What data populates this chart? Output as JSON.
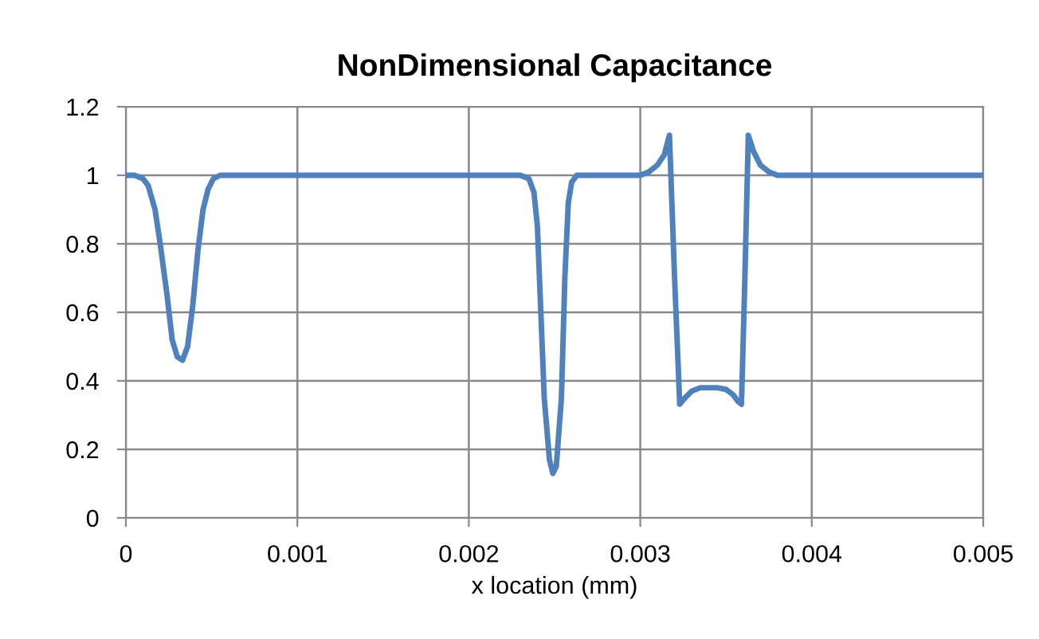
{
  "chart_data": {
    "type": "line",
    "title": "NonDimensional Capacitance",
    "xlabel": "x location (mm)",
    "series": [
      {
        "color": "#4f81bd",
        "x": [
          0,
          5e-05,
          0.0001,
          0.00013,
          0.00017,
          0.0002,
          0.00024,
          0.00027,
          0.0003,
          0.00033,
          0.00036,
          0.00039,
          0.00042,
          0.00045,
          0.00048,
          0.00051,
          0.00055,
          0.0006,
          0.0012,
          0.0018,
          0.0023,
          0.00235,
          0.00238,
          0.0024,
          0.00242,
          0.00244,
          0.00247,
          0.00249,
          0.00251,
          0.00254,
          0.00256,
          0.00258,
          0.0026,
          0.00263,
          0.00268,
          0.0028,
          0.0029,
          0.003,
          0.00305,
          0.0031,
          0.00314,
          0.00317,
          0.0032,
          0.00323,
          0.00326,
          0.0033,
          0.00335,
          0.0034,
          0.00345,
          0.0035,
          0.00354,
          0.00357,
          0.00359,
          0.00361,
          0.00363,
          0.00366,
          0.0037,
          0.00375,
          0.0038,
          0.0039,
          0.004,
          0.0045,
          0.005
        ],
        "values": [
          1,
          1,
          0.99,
          0.97,
          0.9,
          0.8,
          0.65,
          0.52,
          0.47,
          0.46,
          0.5,
          0.62,
          0.78,
          0.9,
          0.96,
          0.99,
          1,
          1,
          1,
          1,
          1,
          0.99,
          0.95,
          0.85,
          0.6,
          0.35,
          0.17,
          0.13,
          0.15,
          0.35,
          0.7,
          0.92,
          0.98,
          1,
          1,
          1,
          1,
          1,
          1.01,
          1.03,
          1.06,
          1.117,
          0.7,
          0.332,
          0.35,
          0.37,
          0.38,
          0.38,
          0.38,
          0.375,
          0.36,
          0.34,
          0.332,
          0.7,
          1.117,
          1.07,
          1.03,
          1.01,
          1,
          1,
          1,
          1,
          1
        ]
      }
    ],
    "xlim": [
      0,
      0.005
    ],
    "xticks": [
      0,
      0.001,
      0.002,
      0.003,
      0.004,
      0.005
    ],
    "ylim": [
      0,
      1.2
    ],
    "yticks": [
      0,
      0.2,
      0.4,
      0.6,
      0.8,
      1,
      1.2
    ],
    "grid": true,
    "legend": false
  }
}
